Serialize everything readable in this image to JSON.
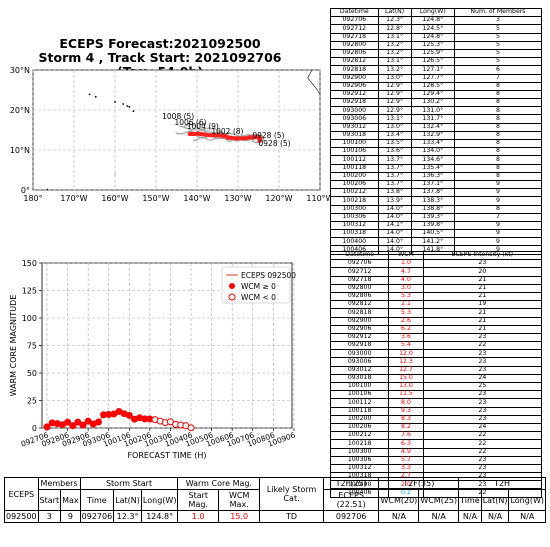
{
  "title_line1": "ECEPS Forecast:2021092500",
  "title_line2": "Storm 4 , Track Start: 2021092706 (Tau=54.0h)",
  "map": {
    "lat_ticks": [
      "0°",
      "10°N",
      "20°N",
      "30°N"
    ],
    "lon_ticks": [
      "180°",
      "170°W",
      "160°W",
      "150°W",
      "140°W",
      "130°W",
      "120°W",
      "110°W"
    ],
    "lat_range": [
      0,
      30
    ],
    "lon_range": [
      -180,
      -110
    ],
    "member_labels": [
      {
        "text": "1008 (5)",
        "lon": -148.5,
        "lat": 17.8
      },
      {
        "text": "1006 (6)",
        "lon": -145.5,
        "lat": 16.3
      },
      {
        "text": "1004 (9)",
        "lon": -142.5,
        "lat": 15.2
      },
      {
        "text": "1002 (8)",
        "lon": -136.5,
        "lat": 14.0
      },
      {
        "text": "0928 (5)",
        "lon": -125.0,
        "lat": 11.0
      },
      {
        "text": "0928 (5)",
        "lon": -126.5,
        "lat": 13.0
      }
    ],
    "mean_track": [
      {
        "lon": -124.8,
        "lat": 12.3
      },
      {
        "lon": -124.5,
        "lat": 12.8
      },
      {
        "lon": -124.8,
        "lat": 13.1
      },
      {
        "lon": -125.3,
        "lat": 13.2
      },
      {
        "lon": -125.9,
        "lat": 13.2
      },
      {
        "lon": -126.5,
        "lat": 13.1
      },
      {
        "lon": -127.1,
        "lat": 13.2
      },
      {
        "lon": -127.7,
        "lat": 13.0
      },
      {
        "lon": -128.5,
        "lat": 12.9
      },
      {
        "lon": -129.4,
        "lat": 12.9
      },
      {
        "lon": -130.2,
        "lat": 12.9
      },
      {
        "lon": -131.0,
        "lat": 12.9
      },
      {
        "lon": -131.7,
        "lat": 13.1
      },
      {
        "lon": -132.4,
        "lat": 13.0
      },
      {
        "lon": -132.9,
        "lat": 13.4
      },
      {
        "lon": -133.4,
        "lat": 13.5
      },
      {
        "lon": -134.0,
        "lat": 13.6
      },
      {
        "lon": -134.6,
        "lat": 13.7
      },
      {
        "lon": -135.4,
        "lat": 13.7
      },
      {
        "lon": -136.3,
        "lat": 13.7
      },
      {
        "lon": -137.1,
        "lat": 13.7
      },
      {
        "lon": -137.8,
        "lat": 13.8
      },
      {
        "lon": -138.3,
        "lat": 13.9
      },
      {
        "lon": -138.8,
        "lat": 14.0
      },
      {
        "lon": -139.3,
        "lat": 14.0
      },
      {
        "lon": -139.8,
        "lat": 14.1
      },
      {
        "lon": -140.5,
        "lat": 14.0
      },
      {
        "lon": -141.2,
        "lat": 14.0
      },
      {
        "lon": -141.8,
        "lat": 14.0
      }
    ]
  },
  "chart_data": [
    {
      "type": "line",
      "title": "ECEPS Forecast:2021092500 Storm 4 , Track Start: 2021092706 (Tau=54.0h)",
      "x_label": "Longitude",
      "y_label": "Latitude",
      "xlim": [
        -180,
        -110
      ],
      "ylim": [
        0,
        30
      ],
      "series": []
    },
    {
      "type": "scatter",
      "xlabel": "FORECAST TIME (H)",
      "ylabel": "WARM CORE MAGNITUDE",
      "ylim": [
        0,
        150
      ],
      "y_ticks": [
        "0",
        "25",
        "50",
        "75",
        "100",
        "125",
        "150"
      ],
      "x_tick_labels": [
        "092706",
        "092806",
        "092906",
        "093006",
        "100106",
        "100206",
        "100306",
        "100406",
        "100506",
        "100606",
        "100706",
        "100806",
        "100906"
      ],
      "legend": [
        "ECEPS 092500",
        "WCM ≥ 0",
        "WCM < 0"
      ],
      "legend_position": "top-right",
      "x": [
        "092706",
        "092712",
        "092718",
        "092800",
        "092806",
        "092812",
        "092818",
        "092900",
        "092906",
        "092912",
        "092918",
        "093000",
        "093006",
        "093012",
        "093018",
        "100100",
        "100106",
        "100112",
        "100118",
        "100200",
        "100206",
        "100212",
        "100218",
        "100300",
        "100306",
        "100312",
        "100318",
        "100400",
        "100406"
      ],
      "values": [
        1.0,
        4.7,
        4.0,
        3.0,
        5.3,
        2.1,
        5.3,
        2.6,
        6.2,
        3.6,
        5.4,
        12.0,
        12.3,
        12.7,
        15.0,
        13.0,
        11.5,
        8.0,
        9.3,
        8.3,
        8.2,
        7.6,
        6.3,
        4.9,
        5.7,
        3.3,
        2.7,
        2.0,
        0.2
      ]
    }
  ],
  "track_table": {
    "headers": [
      "Datetime",
      "Lat(N)",
      "Long(W)",
      "Num. of Members"
    ],
    "rows": [
      [
        "092706",
        "12.3°",
        "124.8°",
        "3"
      ],
      [
        "092712",
        "12.8°",
        "124.5°",
        "5"
      ],
      [
        "092718",
        "13.1°",
        "124.8°",
        "5"
      ],
      [
        "092800",
        "13.2°",
        "125.3°",
        "5"
      ],
      [
        "092806",
        "13.2°",
        "125.9°",
        "5"
      ],
      [
        "092812",
        "13.1°",
        "126.5°",
        "5"
      ],
      [
        "092818",
        "13.2°",
        "127.1°",
        "6"
      ],
      [
        "092900",
        "13.0°",
        "127.7°",
        "7"
      ],
      [
        "092906",
        "12.9°",
        "128.5°",
        "8"
      ],
      [
        "092912",
        "12.9°",
        "129.4°",
        "8"
      ],
      [
        "092918",
        "12.9°",
        "130.2°",
        "8"
      ],
      [
        "093000",
        "12.9°",
        "131.0°",
        "8"
      ],
      [
        "093006",
        "13.1°",
        "131.7°",
        "8"
      ],
      [
        "093012",
        "13.0°",
        "132.4°",
        "8"
      ],
      [
        "093018",
        "13.4°",
        "132.9°",
        "8"
      ],
      [
        "100100",
        "13.5°",
        "133.4°",
        "8"
      ],
      [
        "100106",
        "13.6°",
        "134.0°",
        "8"
      ],
      [
        "100112",
        "13.7°",
        "134.6°",
        "8"
      ],
      [
        "100118",
        "13.7°",
        "135.4°",
        "8"
      ],
      [
        "100200",
        "13.7°",
        "136.3°",
        "8"
      ],
      [
        "100206",
        "13.7°",
        "137.1°",
        "9"
      ],
      [
        "100212",
        "13.8°",
        "137.8°",
        "9"
      ],
      [
        "100218",
        "13.9°",
        "138.3°",
        "9"
      ],
      [
        "100300",
        "14.0°",
        "138.8°",
        "8"
      ],
      [
        "100306",
        "14.0°",
        "139.3°",
        "7"
      ],
      [
        "100312",
        "14.1°",
        "139.8°",
        "9"
      ],
      [
        "100318",
        "14.0°",
        "140.5°",
        "9"
      ],
      [
        "100400",
        "14.0°",
        "141.2°",
        "9"
      ],
      [
        "100406",
        "14.0°",
        "141.8°",
        "9"
      ]
    ]
  },
  "wcm_table": {
    "headers": [
      "Datetime",
      "WCM",
      "ECEPS Intensity (kt)"
    ],
    "rows": [
      [
        "092706",
        "1.0",
        "23"
      ],
      [
        "092712",
        "4.7",
        "20"
      ],
      [
        "092718",
        "4.0",
        "21"
      ],
      [
        "092800",
        "3.0",
        "21"
      ],
      [
        "092806",
        "5.3",
        "21"
      ],
      [
        "092812",
        "2.1",
        "19"
      ],
      [
        "092818",
        "5.3",
        "21"
      ],
      [
        "092900",
        "2.6",
        "21"
      ],
      [
        "092906",
        "6.2",
        "21"
      ],
      [
        "092912",
        "3.6",
        "23"
      ],
      [
        "092918",
        "5.4",
        "22"
      ],
      [
        "093000",
        "12.0",
        "23"
      ],
      [
        "093006",
        "12.3",
        "23"
      ],
      [
        "093012",
        "12.7",
        "23"
      ],
      [
        "093018",
        "15.0",
        "24"
      ],
      [
        "100100",
        "13.0",
        "25"
      ],
      [
        "100106",
        "11.5",
        "23"
      ],
      [
        "100112",
        "8.0",
        "23"
      ],
      [
        "100118",
        "9.3",
        "23"
      ],
      [
        "100200",
        "8.3",
        "23"
      ],
      [
        "100206",
        "8.2",
        "24"
      ],
      [
        "100212",
        "7.6",
        "22"
      ],
      [
        "100218",
        "6.3",
        "22"
      ],
      [
        "100300",
        "4.9",
        "22"
      ],
      [
        "100306",
        "5.7",
        "23"
      ],
      [
        "100312",
        "3.3",
        "23"
      ],
      [
        "100318",
        "2.7",
        "23"
      ],
      [
        "100400",
        "2.0",
        "23"
      ],
      [
        "100406",
        "0.2",
        "22"
      ]
    ]
  },
  "summary": {
    "group_headers": [
      "ECEPS",
      "Members",
      "Storm Start",
      "Warm Core Mag.",
      "Likely Storm Cat.",
      "T2F(25)",
      "T2F(35)",
      "T2H"
    ],
    "sub_headers": [
      "Start",
      "Max",
      "Time",
      "Lat(N)",
      "Long(W)",
      "Start Mag.",
      "WCM Max.",
      "ECEPS (22.51)",
      "WCM(20)",
      "WCM(25)",
      "Lat(N)",
      "Long(W)"
    ],
    "row": [
      "092500",
      "3",
      "9",
      "092706",
      "12.3°",
      "124.8°",
      "1.0",
      "15.0",
      "TD",
      "092706",
      "N/A",
      "N/A",
      "N/A",
      "N/A",
      "N/A"
    ]
  },
  "colors": {
    "track": "#ff2020",
    "member_track": "#9a9a9a",
    "wcm_marker": "#ff0000",
    "wcm_negative": "#00b0f0"
  }
}
